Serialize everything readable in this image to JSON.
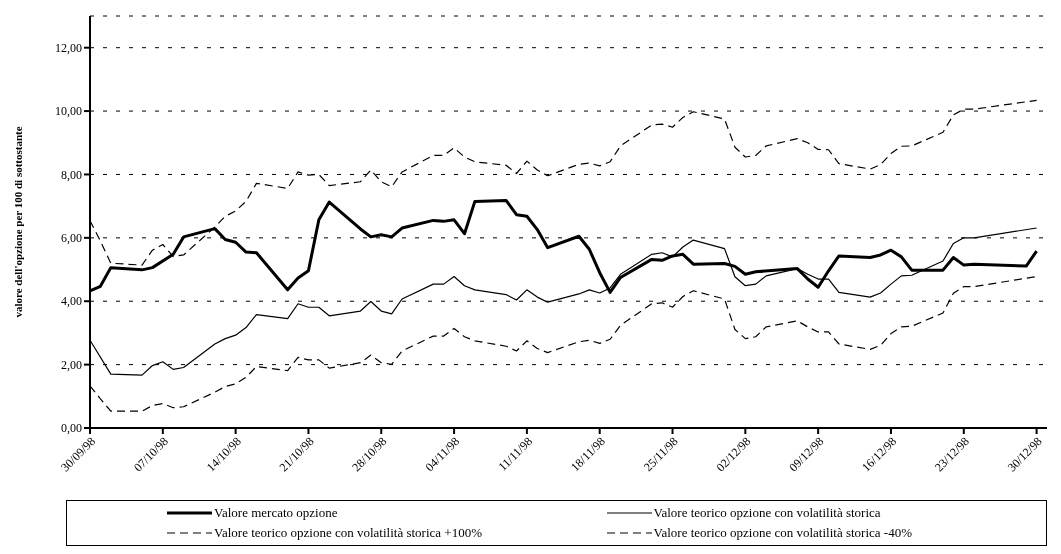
{
  "chart_data": {
    "type": "line",
    "ylabel": "valore dell'opzione per 100 di sottostante",
    "xlim": [
      "1998-09-30",
      "1998-12-31"
    ],
    "xticks": [
      {
        "value": "1998-09-30",
        "label": "30/09/98"
      },
      {
        "value": "1998-10-07",
        "label": "07/10/98"
      },
      {
        "value": "1998-10-14",
        "label": "14/10/98"
      },
      {
        "value": "1998-10-21",
        "label": "21/10/98"
      },
      {
        "value": "1998-10-28",
        "label": "28/10/98"
      },
      {
        "value": "1998-11-04",
        "label": "04/11/98"
      },
      {
        "value": "1998-11-11",
        "label": "11/11/98"
      },
      {
        "value": "1998-11-18",
        "label": "18/11/98"
      },
      {
        "value": "1998-11-25",
        "label": "25/11/98"
      },
      {
        "value": "1998-12-02",
        "label": "02/12/98"
      },
      {
        "value": "1998-12-09",
        "label": "09/12/98"
      },
      {
        "value": "1998-12-16",
        "label": "16/12/98"
      },
      {
        "value": "1998-12-23",
        "label": "23/12/98"
      },
      {
        "value": "1998-12-30",
        "label": "30/12/98"
      }
    ],
    "ylim": [
      0,
      13
    ],
    "yticks": [
      {
        "value": 0,
        "label": "0,00"
      },
      {
        "value": 2,
        "label": "2,00"
      },
      {
        "value": 4,
        "label": "4,00"
      },
      {
        "value": 6,
        "label": "6,00"
      },
      {
        "value": 8,
        "label": "8,00"
      },
      {
        "value": 10,
        "label": "10,00"
      },
      {
        "value": 12,
        "label": "12,00"
      }
    ],
    "grid": "y",
    "legend": "bottom",
    "marker": "none",
    "series": [
      {
        "name": "Valore mercato opzione",
        "color": "#000000",
        "line_style": "solid",
        "x": [
          "1998-09-30",
          "1998-10-01",
          "1998-10-02",
          "1998-10-05",
          "1998-10-06",
          "1998-10-08",
          "1998-10-09",
          "1998-10-12",
          "1998-10-13",
          "1998-10-14",
          "1998-10-15",
          "1998-10-16",
          "1998-10-19",
          "1998-10-20",
          "1998-10-21",
          "1998-10-22",
          "1998-10-23",
          "1998-10-26",
          "1998-10-27",
          "1998-10-28",
          "1998-10-29",
          "1998-10-30",
          "1998-11-02",
          "1998-11-03",
          "1998-11-04",
          "1998-11-05",
          "1998-11-06",
          "1998-11-09",
          "1998-11-10",
          "1998-11-11",
          "1998-11-12",
          "1998-11-13",
          "1998-11-16",
          "1998-11-17",
          "1998-11-18",
          "1998-11-19",
          "1998-11-20",
          "1998-11-23",
          "1998-11-24",
          "1998-11-25",
          "1998-11-26",
          "1998-11-27",
          "1998-11-30",
          "1998-12-01",
          "1998-12-02",
          "1998-12-03",
          "1998-12-07",
          "1998-12-08",
          "1998-12-09",
          "1998-12-10",
          "1998-12-11",
          "1998-12-14",
          "1998-12-15",
          "1998-12-16",
          "1998-12-17",
          "1998-12-18",
          "1998-12-21",
          "1998-12-22",
          "1998-12-23",
          "1998-12-24",
          "1998-12-29",
          "1998-12-30"
        ],
        "values": [
          4.33,
          4.47,
          5.06,
          4.99,
          5.06,
          5.48,
          6.03,
          6.29,
          5.95,
          5.86,
          5.55,
          5.53,
          4.36,
          4.73,
          4.96,
          6.57,
          7.13,
          6.28,
          6.03,
          6.1,
          6.03,
          6.31,
          6.55,
          6.52,
          6.57,
          6.13,
          7.15,
          7.18,
          6.73,
          6.68,
          6.26,
          5.69,
          6.05,
          5.64,
          4.9,
          4.28,
          4.75,
          5.32,
          5.29,
          5.43,
          5.48,
          5.17,
          5.19,
          5.1,
          4.85,
          4.93,
          5.03,
          4.7,
          4.44,
          4.96,
          5.43,
          5.38,
          5.46,
          5.61,
          5.4,
          4.98,
          4.98,
          5.38,
          5.14,
          5.17,
          5.11,
          5.58
        ]
      },
      {
        "name": "Valore teorico opzione con volatilità storica",
        "color": "#000000",
        "line_style": "solid",
        "x": [
          "1998-09-30",
          "1998-10-02",
          "1998-10-05",
          "1998-10-06",
          "1998-10-07",
          "1998-10-08",
          "1998-10-09",
          "1998-10-12",
          "1998-10-13",
          "1998-10-14",
          "1998-10-15",
          "1998-10-16",
          "1998-10-19",
          "1998-10-20",
          "1998-10-21",
          "1998-10-22",
          "1998-10-23",
          "1998-10-26",
          "1998-10-27",
          "1998-10-28",
          "1998-10-29",
          "1998-10-30",
          "1998-11-02",
          "1998-11-03",
          "1998-11-04",
          "1998-11-05",
          "1998-11-06",
          "1998-11-09",
          "1998-11-10",
          "1998-11-11",
          "1998-11-12",
          "1998-11-13",
          "1998-11-16",
          "1998-11-17",
          "1998-11-18",
          "1998-11-19",
          "1998-11-20",
          "1998-11-23",
          "1998-11-24",
          "1998-11-25",
          "1998-11-26",
          "1998-11-27",
          "1998-11-30",
          "1998-12-01",
          "1998-12-02",
          "1998-12-03",
          "1998-12-04",
          "1998-12-07",
          "1998-12-08",
          "1998-12-09",
          "1998-12-10",
          "1998-12-11",
          "1998-12-14",
          "1998-12-15",
          "1998-12-16",
          "1998-12-17",
          "1998-12-18",
          "1998-12-21",
          "1998-12-22",
          "1998-12-23",
          "1998-12-24",
          "1998-12-30"
        ],
        "values": [
          2.77,
          1.7,
          1.67,
          1.97,
          2.09,
          1.85,
          1.91,
          2.65,
          2.82,
          2.93,
          3.17,
          3.58,
          3.45,
          3.92,
          3.81,
          3.81,
          3.54,
          3.69,
          3.99,
          3.69,
          3.6,
          4.07,
          4.54,
          4.54,
          4.78,
          4.49,
          4.36,
          4.21,
          4.04,
          4.36,
          4.13,
          3.97,
          4.23,
          4.36,
          4.26,
          4.42,
          4.85,
          5.48,
          5.53,
          5.4,
          5.71,
          5.93,
          5.66,
          4.77,
          4.49,
          4.54,
          4.8,
          5.03,
          4.85,
          4.7,
          4.7,
          4.28,
          4.13,
          4.26,
          4.54,
          4.8,
          4.82,
          5.27,
          5.82,
          6.0,
          6.0,
          6.31
        ]
      },
      {
        "name": "Valore teorico opzione con volatilità storica +100%",
        "color": "#000000",
        "line_style": "dashed",
        "x": [
          "1998-09-30",
          "1998-10-01",
          "1998-10-02",
          "1998-10-05",
          "1998-10-06",
          "1998-10-07",
          "1998-10-08",
          "1998-10-09",
          "1998-10-12",
          "1998-10-13",
          "1998-10-14",
          "1998-10-15",
          "1998-10-16",
          "1998-10-19",
          "1998-10-20",
          "1998-10-21",
          "1998-10-22",
          "1998-10-23",
          "1998-10-26",
          "1998-10-27",
          "1998-10-28",
          "1998-10-29",
          "1998-10-30",
          "1998-11-02",
          "1998-11-03",
          "1998-11-04",
          "1998-11-05",
          "1998-11-06",
          "1998-11-09",
          "1998-11-10",
          "1998-11-11",
          "1998-11-12",
          "1998-11-13",
          "1998-11-16",
          "1998-11-17",
          "1998-11-18",
          "1998-11-19",
          "1998-11-20",
          "1998-11-23",
          "1998-11-24",
          "1998-11-25",
          "1998-11-26",
          "1998-11-27",
          "1998-11-30",
          "1998-12-01",
          "1998-12-02",
          "1998-12-03",
          "1998-12-04",
          "1998-12-07",
          "1998-12-08",
          "1998-12-09",
          "1998-12-10",
          "1998-12-11",
          "1998-12-14",
          "1998-12-15",
          "1998-12-16",
          "1998-12-17",
          "1998-12-18",
          "1998-12-21",
          "1998-12-22",
          "1998-12-23",
          "1998-12-24",
          "1998-12-30"
        ],
        "values": [
          6.54,
          5.9,
          5.2,
          5.14,
          5.61,
          5.79,
          5.41,
          5.46,
          6.34,
          6.68,
          6.85,
          7.15,
          7.72,
          7.56,
          8.08,
          7.98,
          8.0,
          7.65,
          7.77,
          8.14,
          7.77,
          7.61,
          8.08,
          8.6,
          8.6,
          8.84,
          8.55,
          8.4,
          8.29,
          8.03,
          8.42,
          8.14,
          7.96,
          8.32,
          8.36,
          8.27,
          8.4,
          8.9,
          9.56,
          9.59,
          9.49,
          9.8,
          9.98,
          9.75,
          8.86,
          8.55,
          8.6,
          8.9,
          9.13,
          9.0,
          8.79,
          8.78,
          8.34,
          8.17,
          8.31,
          8.66,
          8.89,
          8.9,
          9.33,
          9.88,
          10.06,
          10.06,
          10.34
        ]
      },
      {
        "name": "Valore teorico opzione con volatilità storica -40%",
        "color": "#000000",
        "line_style": "dashed",
        "x": [
          "1998-09-30",
          "1998-10-01",
          "1998-10-02",
          "1998-10-05",
          "1998-10-06",
          "1998-10-07",
          "1998-10-08",
          "1998-10-09",
          "1998-10-12",
          "1998-10-13",
          "1998-10-14",
          "1998-10-15",
          "1998-10-16",
          "1998-10-19",
          "1998-10-20",
          "1998-10-21",
          "1998-10-22",
          "1998-10-23",
          "1998-10-26",
          "1998-10-27",
          "1998-10-28",
          "1998-10-29",
          "1998-10-30",
          "1998-11-02",
          "1998-11-03",
          "1998-11-04",
          "1998-11-05",
          "1998-11-06",
          "1998-11-09",
          "1998-11-10",
          "1998-11-11",
          "1998-11-12",
          "1998-11-13",
          "1998-11-16",
          "1998-11-17",
          "1998-11-18",
          "1998-11-19",
          "1998-11-20",
          "1998-11-23",
          "1998-11-24",
          "1998-11-25",
          "1998-11-26",
          "1998-11-27",
          "1998-11-30",
          "1998-12-01",
          "1998-12-02",
          "1998-12-03",
          "1998-12-04",
          "1998-12-07",
          "1998-12-08",
          "1998-12-09",
          "1998-12-10",
          "1998-12-11",
          "1998-12-14",
          "1998-12-15",
          "1998-12-16",
          "1998-12-17",
          "1998-12-18",
          "1998-12-21",
          "1998-12-22",
          "1998-12-23",
          "1998-12-24",
          "1998-12-30"
        ],
        "values": [
          1.33,
          0.92,
          0.53,
          0.53,
          0.71,
          0.77,
          0.64,
          0.67,
          1.13,
          1.31,
          1.39,
          1.6,
          1.94,
          1.81,
          2.23,
          2.15,
          2.15,
          1.89,
          2.06,
          2.3,
          2.06,
          2.01,
          2.43,
          2.9,
          2.9,
          3.14,
          2.88,
          2.75,
          2.58,
          2.43,
          2.75,
          2.51,
          2.38,
          2.72,
          2.77,
          2.67,
          2.8,
          3.24,
          3.92,
          3.95,
          3.81,
          4.15,
          4.33,
          4.07,
          3.11,
          2.82,
          2.88,
          3.19,
          3.38,
          3.19,
          3.03,
          3.03,
          2.65,
          2.48,
          2.61,
          2.98,
          3.19,
          3.21,
          3.63,
          4.25,
          4.46,
          4.46,
          4.78
        ]
      }
    ]
  }
}
